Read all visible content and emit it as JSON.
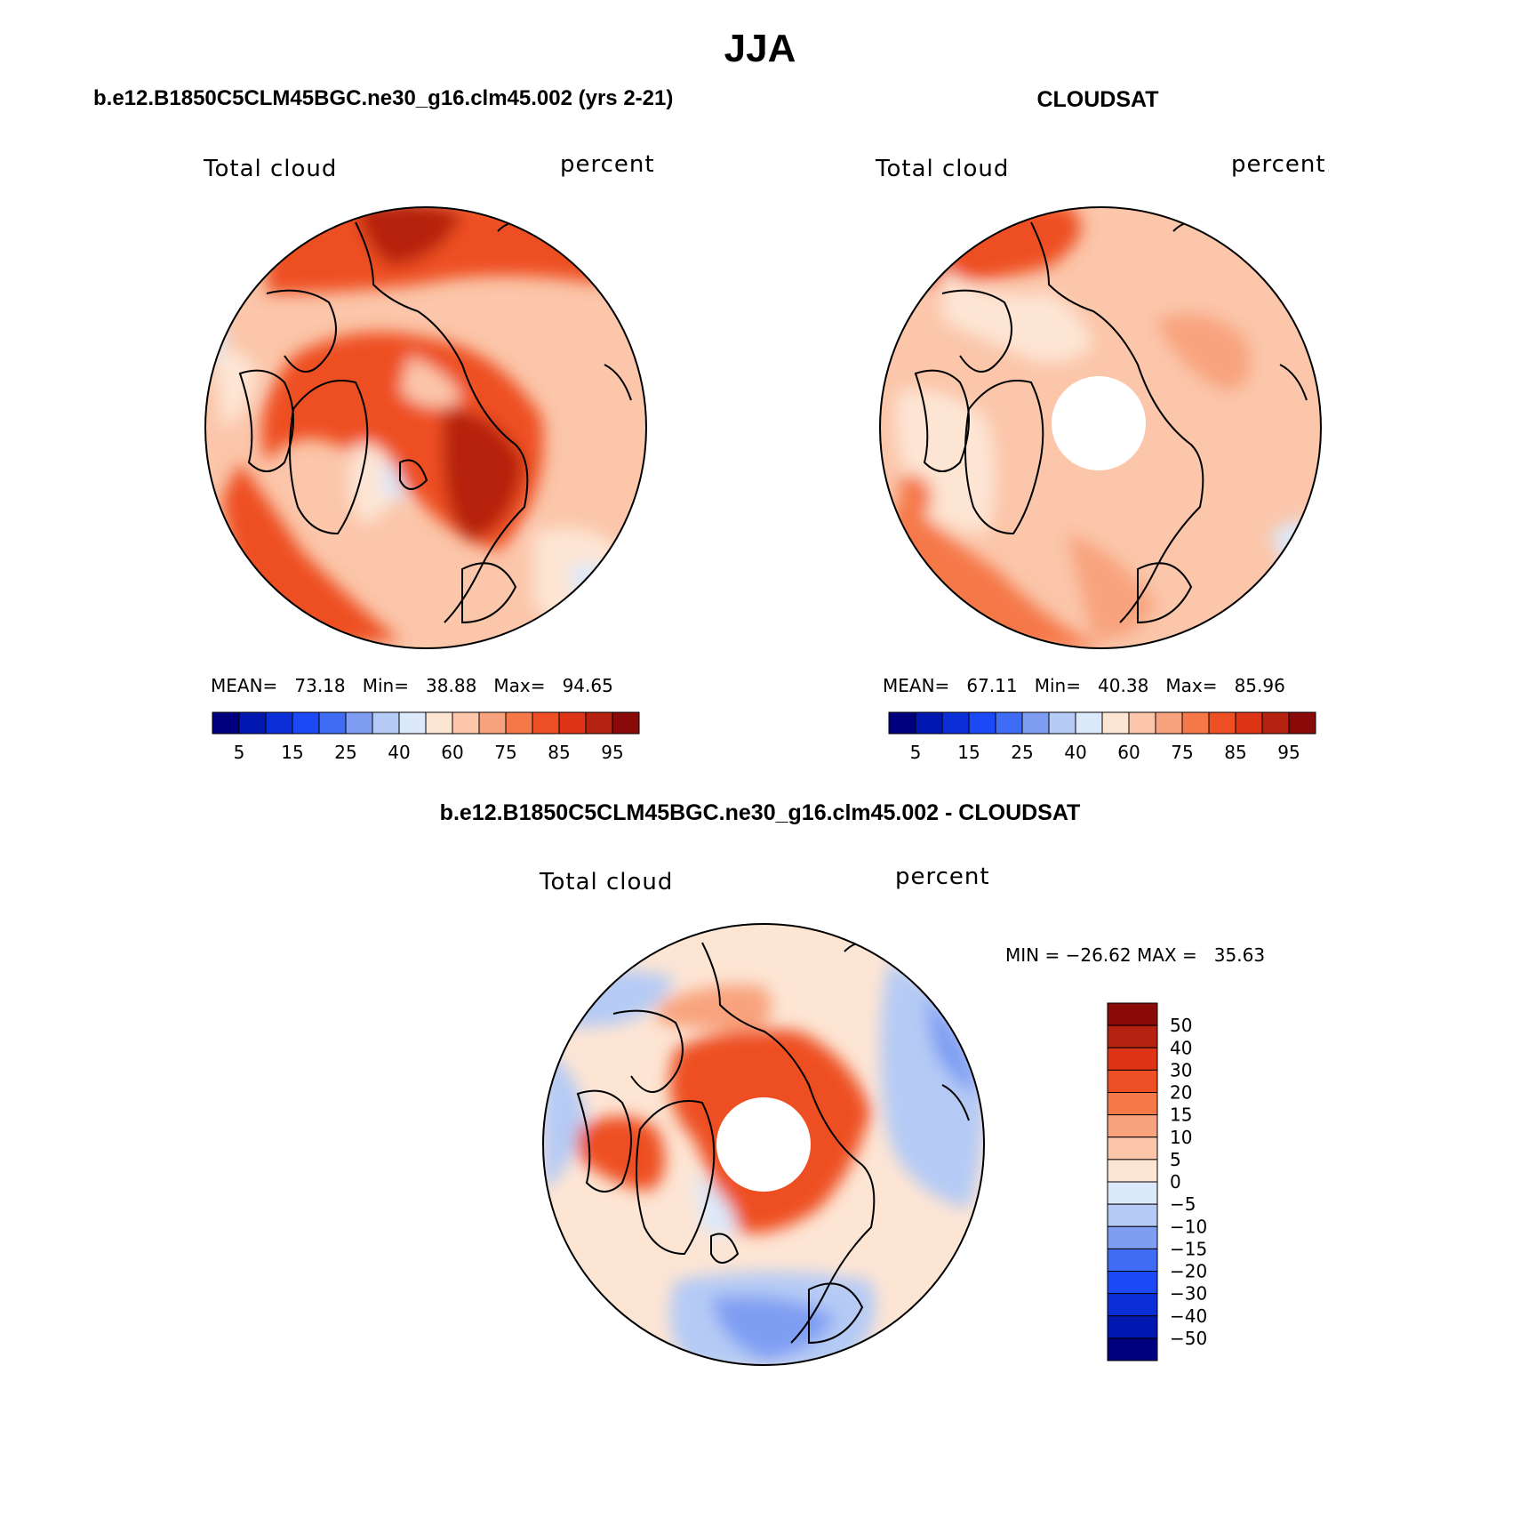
{
  "season_title": "JJA",
  "panels": {
    "model": {
      "title": "b.e12.B1850C5CLM45BGC.ne30_g16.clm45.002 (yrs 2-21)",
      "left_label": "Total cloud",
      "right_label": "percent",
      "stats": {
        "mean_label": "MEAN=",
        "mean": "73.18",
        "min_label": "Min=",
        "min": "38.88",
        "max_label": "Max=",
        "max": "94.65"
      }
    },
    "obs": {
      "title": "CLOUDSAT",
      "left_label": "Total cloud",
      "right_label": "percent",
      "stats": {
        "mean_label": "MEAN=",
        "mean": "67.11",
        "min_label": "Min=",
        "min": "40.38",
        "max_label": "Max=",
        "max": "85.96"
      }
    },
    "diff": {
      "title": "b.e12.B1850C5CLM45BGC.ne30_g16.clm45.002 - CLOUDSAT",
      "left_label": "Total cloud",
      "right_label": "percent",
      "minmax": "MIN = −26.62 MAX =   35.63"
    }
  },
  "abs_colorbar": {
    "colors": [
      "#00007f",
      "#0018b0",
      "#0a2fd9",
      "#1a49f5",
      "#3f6cf5",
      "#7f9ef3",
      "#b5cbf5",
      "#dce9fa",
      "#fde5d4",
      "#fbc6aa",
      "#f8a37d",
      "#f57848",
      "#ee4f24",
      "#dc3415",
      "#b62210",
      "#8a0a0a"
    ],
    "ticks": [
      "5",
      "15",
      "25",
      "40",
      "60",
      "75",
      "85",
      "95"
    ]
  },
  "diff_colorbar": {
    "colors_top_to_bottom": [
      "#8a0a0a",
      "#b62210",
      "#dc3415",
      "#ee4f24",
      "#f57848",
      "#f8a37d",
      "#fbc6aa",
      "#fde5d4",
      "#dce9fa",
      "#b5cbf5",
      "#7f9ef3",
      "#3f6cf5",
      "#1a49f5",
      "#0a2fd9",
      "#0018b0",
      "#00007f"
    ],
    "ticks": [
      "50",
      "40",
      "30",
      "20",
      "15",
      "10",
      "5",
      "0",
      "−5",
      "−10",
      "−15",
      "−20",
      "−30",
      "−40",
      "−50"
    ]
  }
}
